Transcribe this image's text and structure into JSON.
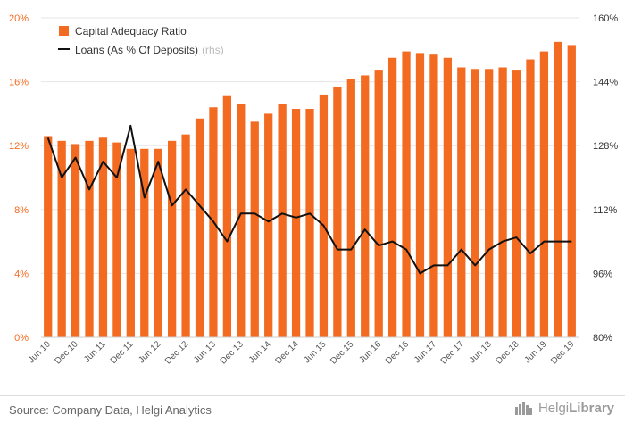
{
  "chart_data": {
    "type": "bar+line",
    "categories": [
      "Jun 10",
      "",
      "Dec 10",
      "",
      "Jun 11",
      "",
      "Dec 11",
      "",
      "Jun 12",
      "",
      "Dec 12",
      "",
      "Jun 13",
      "",
      "Dec 13",
      "",
      "Jun 14",
      "",
      "Dec 14",
      "",
      "Jun 15",
      "",
      "Dec 15",
      "",
      "Jun 16",
      "",
      "Dec 16",
      "",
      "Jun 17",
      "",
      "Dec 17",
      "",
      "Jun 18",
      "",
      "Dec 18",
      "",
      "Jun 19",
      "",
      "Dec 19"
    ],
    "series": [
      {
        "name": "Capital Adequacy Ratio",
        "type": "bar",
        "axis": "left",
        "color": "#f26b21",
        "values": [
          12.6,
          12.3,
          12.1,
          12.3,
          12.5,
          12.2,
          11.8,
          11.8,
          11.8,
          12.3,
          12.7,
          13.7,
          14.4,
          15.1,
          14.6,
          13.5,
          14.0,
          14.6,
          14.3,
          14.3,
          15.2,
          15.7,
          16.2,
          16.4,
          16.7,
          17.5,
          17.9,
          17.8,
          17.7,
          17.5,
          16.9,
          16.8,
          16.8,
          16.9,
          16.7,
          17.4,
          17.9,
          18.5,
          18.3
        ]
      },
      {
        "name": "Loans (As % Of Deposits)",
        "note": "(rhs)",
        "type": "line",
        "axis": "right",
        "color": "#111111",
        "values": [
          130,
          120,
          125,
          117,
          124,
          120,
          133,
          115,
          124,
          113,
          117,
          113,
          109,
          104,
          111,
          111,
          109,
          111,
          110,
          111,
          108,
          102,
          102,
          107,
          103,
          104,
          102,
          96,
          98,
          98,
          102,
          98,
          102,
          104,
          105,
          101,
          104,
          104,
          104
        ]
      }
    ],
    "y_left": {
      "min": 0,
      "max": 20,
      "ticks": [
        "0%",
        "4%",
        "8%",
        "12%",
        "16%",
        "20%"
      ],
      "color": "#f26b21"
    },
    "y_right": {
      "min": 80,
      "max": 160,
      "ticks": [
        "80%",
        "96%",
        "112%",
        "128%",
        "144%",
        "160%"
      ],
      "color": "#333333"
    },
    "legend_position": "top-left",
    "grid": true
  },
  "footer": {
    "source": "Source: Company Data, Helgi Analytics",
    "brand_light": "Helgi",
    "brand_bold": "Library"
  }
}
